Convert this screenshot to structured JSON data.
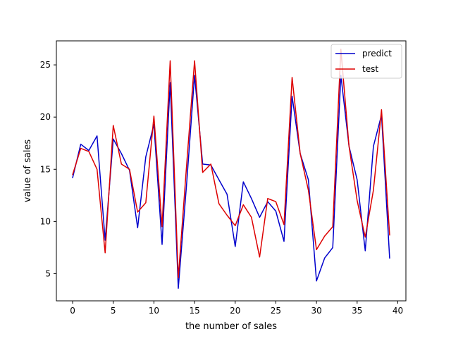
{
  "chart_data": {
    "type": "line",
    "title": "",
    "xlabel": "the number of sales",
    "ylabel": "value of sales",
    "xlim": [
      -2,
      41
    ],
    "ylim": [
      2.4,
      27.3
    ],
    "xticks": [
      0,
      5,
      10,
      15,
      20,
      25,
      30,
      35,
      40
    ],
    "yticks": [
      5,
      10,
      15,
      20,
      25
    ],
    "grid": false,
    "legend_position": "top-right",
    "x": [
      0,
      1,
      2,
      3,
      4,
      5,
      6,
      7,
      8,
      9,
      10,
      11,
      12,
      13,
      14,
      15,
      16,
      17,
      18,
      19,
      20,
      21,
      22,
      23,
      24,
      25,
      26,
      27,
      28,
      29,
      30,
      31,
      32,
      33,
      34,
      35,
      36,
      37,
      38,
      39
    ],
    "series": [
      {
        "name": "predict",
        "color": "#0000cc",
        "values": [
          14.2,
          17.4,
          16.8,
          18.2,
          8.2,
          17.9,
          16.5,
          14.9,
          9.4,
          16.2,
          19.3,
          7.8,
          23.3,
          3.6,
          13.4,
          24.0,
          15.5,
          15.4,
          14.0,
          12.6,
          7.6,
          13.8,
          12.2,
          10.4,
          11.9,
          11.0,
          8.1,
          22.0,
          16.5,
          14.0,
          4.3,
          6.5,
          7.5,
          24.0,
          17.2,
          14.0,
          7.2,
          17.2,
          20.2,
          6.5
        ]
      },
      {
        "name": "test",
        "color": "#dd0000",
        "values": [
          14.5,
          17.0,
          16.7,
          15.0,
          7.0,
          19.2,
          15.5,
          15.0,
          10.9,
          11.8,
          20.1,
          9.5,
          25.4,
          4.6,
          15.2,
          25.4,
          14.7,
          15.5,
          11.7,
          10.6,
          9.6,
          11.6,
          10.4,
          6.6,
          12.2,
          11.9,
          9.7,
          23.8,
          16.5,
          13.0,
          7.3,
          8.6,
          9.5,
          26.5,
          17.2,
          12.0,
          8.5,
          13.0,
          20.7,
          8.7
        ]
      }
    ]
  }
}
